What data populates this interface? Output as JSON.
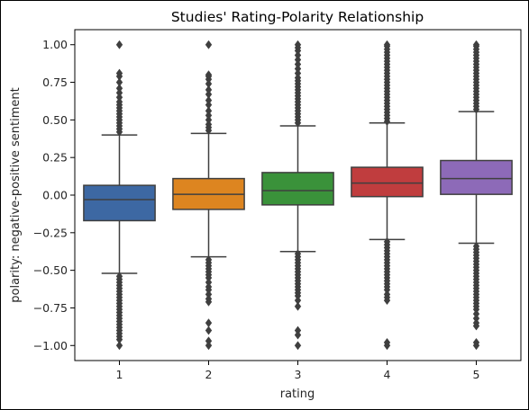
{
  "chart_data": {
    "type": "box",
    "title": "Studies' Rating-Polarity Relationship",
    "xlabel": "rating",
    "ylabel": "polarity: negative-positive sentiment",
    "categories": [
      "1",
      "2",
      "3",
      "4",
      "5"
    ],
    "ylim": [
      -1.1,
      1.1
    ],
    "yticks": [
      "1.00",
      "0.75",
      "0.50",
      "0.25",
      "0.00",
      "−0.25",
      "−0.50",
      "−0.75",
      "−1.00"
    ],
    "ytick_values": [
      1.0,
      0.75,
      0.5,
      0.25,
      0.0,
      -0.25,
      -0.5,
      -0.75,
      -1.0
    ],
    "edge_color": "#3f3f3f",
    "series": [
      {
        "category": "1",
        "color": "#3d68a3",
        "q1": -0.17,
        "median": -0.03,
        "q3": 0.065,
        "whisker_low": -0.52,
        "whisker_high": 0.4,
        "outliers_high": [
          0.42,
          0.44,
          0.46,
          0.48,
          0.5,
          0.52,
          0.54,
          0.56,
          0.58,
          0.6,
          0.62,
          0.65,
          0.68,
          0.71,
          0.75,
          0.79,
          0.81,
          1.0
        ],
        "outliers_low": [
          -0.54,
          -0.56,
          -0.58,
          -0.6,
          -0.62,
          -0.64,
          -0.66,
          -0.68,
          -0.7,
          -0.72,
          -0.74,
          -0.76,
          -0.78,
          -0.8,
          -0.82,
          -0.84,
          -0.86,
          -0.88,
          -0.9,
          -0.92,
          -0.94,
          -0.96,
          -1.0
        ]
      },
      {
        "category": "2",
        "color": "#dd8520",
        "q1": -0.095,
        "median": 0.005,
        "q3": 0.11,
        "whisker_low": -0.41,
        "whisker_high": 0.41,
        "outliers_high": [
          0.43,
          0.45,
          0.47,
          0.5,
          0.53,
          0.56,
          0.6,
          0.63,
          0.67,
          0.7,
          0.74,
          0.77,
          0.79,
          0.8,
          1.0
        ],
        "outliers_low": [
          -0.43,
          -0.45,
          -0.47,
          -0.49,
          -0.51,
          -0.53,
          -0.55,
          -0.58,
          -0.61,
          -0.63,
          -0.66,
          -0.69,
          -0.71,
          -0.85,
          -0.9,
          -0.97,
          -1.0
        ]
      },
      {
        "category": "3",
        "color": "#3a923a",
        "q1": -0.065,
        "median": 0.03,
        "q3": 0.15,
        "whisker_low": -0.375,
        "whisker_high": 0.46,
        "outliers_high": [
          0.48,
          0.5,
          0.52,
          0.54,
          0.56,
          0.58,
          0.6,
          0.62,
          0.64,
          0.66,
          0.68,
          0.7,
          0.72,
          0.74,
          0.76,
          0.78,
          0.81,
          0.84,
          0.87,
          0.9,
          0.93,
          0.96,
          0.98,
          1.0
        ],
        "outliers_low": [
          -0.39,
          -0.41,
          -0.43,
          -0.45,
          -0.47,
          -0.49,
          -0.51,
          -0.53,
          -0.55,
          -0.57,
          -0.59,
          -0.61,
          -0.63,
          -0.65,
          -0.67,
          -0.7,
          -0.74,
          -0.9,
          -0.93,
          -1.0
        ]
      },
      {
        "category": "4",
        "color": "#c03d3e",
        "q1": -0.01,
        "median": 0.08,
        "q3": 0.185,
        "whisker_low": -0.295,
        "whisker_high": 0.48,
        "outliers_high": [
          0.49,
          0.51,
          0.53,
          0.55,
          0.57,
          0.59,
          0.61,
          0.63,
          0.65,
          0.67,
          0.69,
          0.71,
          0.73,
          0.75,
          0.77,
          0.79,
          0.81,
          0.83,
          0.85,
          0.87,
          0.89,
          0.91,
          0.93,
          0.95,
          0.97,
          0.99,
          1.0
        ],
        "outliers_low": [
          -0.31,
          -0.33,
          -0.35,
          -0.37,
          -0.39,
          -0.41,
          -0.43,
          -0.45,
          -0.47,
          -0.49,
          -0.51,
          -0.53,
          -0.55,
          -0.57,
          -0.59,
          -0.61,
          -0.63,
          -0.66,
          -0.68,
          -0.7,
          -0.98,
          -1.0
        ]
      },
      {
        "category": "5",
        "color": "#8d6ab8",
        "q1": 0.005,
        "median": 0.11,
        "q3": 0.23,
        "whisker_low": -0.32,
        "whisker_high": 0.555,
        "outliers_high": [
          0.57,
          0.59,
          0.61,
          0.63,
          0.65,
          0.67,
          0.69,
          0.71,
          0.73,
          0.75,
          0.77,
          0.79,
          0.81,
          0.83,
          0.85,
          0.87,
          0.89,
          0.91,
          0.93,
          0.95,
          0.97,
          0.99,
          1.0
        ],
        "outliers_low": [
          -0.34,
          -0.36,
          -0.38,
          -0.4,
          -0.42,
          -0.44,
          -0.46,
          -0.48,
          -0.5,
          -0.52,
          -0.54,
          -0.56,
          -0.58,
          -0.6,
          -0.62,
          -0.64,
          -0.66,
          -0.68,
          -0.7,
          -0.72,
          -0.74,
          -0.76,
          -0.79,
          -0.82,
          -0.85,
          -0.87,
          -0.98,
          -1.0
        ]
      }
    ]
  }
}
